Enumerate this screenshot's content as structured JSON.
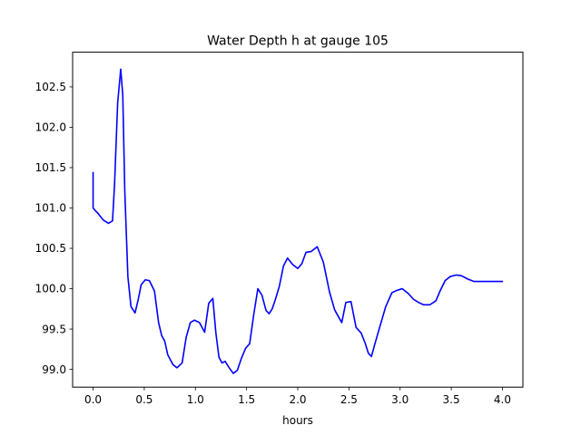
{
  "chart_data": {
    "type": "line",
    "title": "Water Depth h at gauge 105",
    "xlabel": "hours",
    "ylabel": "",
    "xlim": [
      -0.2,
      4.2
    ],
    "ylim": [
      98.78,
      102.93
    ],
    "xticks": [
      0.0,
      0.5,
      1.0,
      1.5,
      2.0,
      2.5,
      3.0,
      3.5,
      4.0
    ],
    "xtick_labels": [
      "0.0",
      "0.5",
      "1.0",
      "1.5",
      "2.0",
      "2.5",
      "3.0",
      "3.5",
      "4.0"
    ],
    "yticks": [
      99.0,
      99.5,
      100.0,
      100.5,
      101.0,
      101.5,
      102.0,
      102.5
    ],
    "ytick_labels": [
      "99.0",
      "99.5",
      "100.0",
      "100.5",
      "101.0",
      "101.5",
      "102.0",
      "102.5"
    ],
    "grid": false,
    "colors": {
      "series": "#0000ff",
      "axes": "#000000",
      "background": "#ffffff"
    },
    "series": [
      {
        "x": [
          0.0,
          0.0,
          0.02,
          0.05,
          0.1,
          0.15,
          0.19,
          0.21,
          0.24,
          0.27,
          0.29,
          0.31,
          0.34,
          0.37,
          0.41,
          0.44,
          0.47,
          0.51,
          0.55,
          0.6,
          0.64,
          0.67,
          0.7,
          0.73,
          0.78,
          0.82,
          0.87,
          0.91,
          0.95,
          0.99,
          1.04,
          1.09,
          1.13,
          1.17,
          1.2,
          1.23,
          1.26,
          1.29,
          1.33,
          1.37,
          1.41,
          1.45,
          1.49,
          1.53,
          1.57,
          1.61,
          1.65,
          1.69,
          1.72,
          1.75,
          1.78,
          1.82,
          1.86,
          1.9,
          1.95,
          2.0,
          2.04,
          2.08,
          2.13,
          2.19,
          2.25,
          2.31,
          2.36,
          2.39,
          2.43,
          2.47,
          2.52,
          2.57,
          2.62,
          2.66,
          2.69,
          2.72,
          2.75,
          2.8,
          2.86,
          2.92,
          2.97,
          3.02,
          3.08,
          3.13,
          3.18,
          3.23,
          3.29,
          3.35,
          3.39,
          3.44,
          3.49,
          3.55,
          3.6,
          3.66,
          3.72,
          3.78,
          3.84,
          3.9,
          3.95,
          4.0
        ],
        "y": [
          101.44,
          101.0,
          100.97,
          100.93,
          100.85,
          100.81,
          100.84,
          101.3,
          102.3,
          102.72,
          102.4,
          101.2,
          100.15,
          99.78,
          99.7,
          99.86,
          100.05,
          100.11,
          100.1,
          99.97,
          99.58,
          99.42,
          99.35,
          99.18,
          99.06,
          99.02,
          99.08,
          99.4,
          99.58,
          99.61,
          99.58,
          99.46,
          99.82,
          99.88,
          99.45,
          99.15,
          99.08,
          99.1,
          99.02,
          98.95,
          98.99,
          99.14,
          99.26,
          99.32,
          99.68,
          100.0,
          99.92,
          99.73,
          99.69,
          99.75,
          99.86,
          100.03,
          100.28,
          100.38,
          100.3,
          100.25,
          100.31,
          100.45,
          100.46,
          100.52,
          100.33,
          99.96,
          99.74,
          99.67,
          99.58,
          99.83,
          99.84,
          99.52,
          99.45,
          99.32,
          99.2,
          99.16,
          99.3,
          99.52,
          99.78,
          99.95,
          99.98,
          100.0,
          99.94,
          99.87,
          99.83,
          99.8,
          99.8,
          99.85,
          99.97,
          100.1,
          100.15,
          100.17,
          100.16,
          100.12,
          100.09,
          100.09,
          100.09,
          100.09,
          100.09,
          100.09
        ]
      }
    ]
  }
}
